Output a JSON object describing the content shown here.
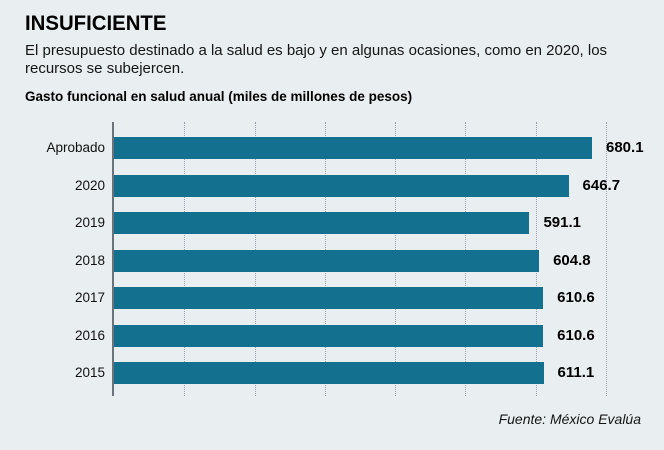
{
  "page": {
    "title": "INSUFICIENTE",
    "subtitle": "El presupuesto destinado a la salud es bajo y en algunas ocasiones, como en 2020, los recursos se subejercen.",
    "source": "Fuente: México Evalúa"
  },
  "colors": {
    "background": "#e9eef1",
    "bar": "#13708f",
    "axis": "#6a737a",
    "gridline": "#97a2aa",
    "text": "#0b0b0b"
  },
  "chart_data": {
    "type": "bar",
    "orientation": "horizontal",
    "title": "Gasto funcional en salud anual (miles de millones de pesos)",
    "categories": [
      "Aprobado",
      "2020",
      "2019",
      "2018",
      "2017",
      "2016",
      "2015"
    ],
    "values": [
      680.1,
      646.7,
      591.1,
      604.8,
      610.6,
      610.6,
      611.1
    ],
    "value_labels": [
      "680.1",
      "646.7",
      "591.1",
      "604.8",
      "610.6",
      "610.6",
      "611.1"
    ],
    "xlabel": "",
    "ylabel": "",
    "xlim": [
      0,
      700
    ],
    "gridlines": [
      100,
      200,
      300,
      400,
      500,
      600,
      700
    ],
    "grid": "dotted-vertical",
    "legend": "none",
    "unit": "miles de millones de pesos"
  }
}
